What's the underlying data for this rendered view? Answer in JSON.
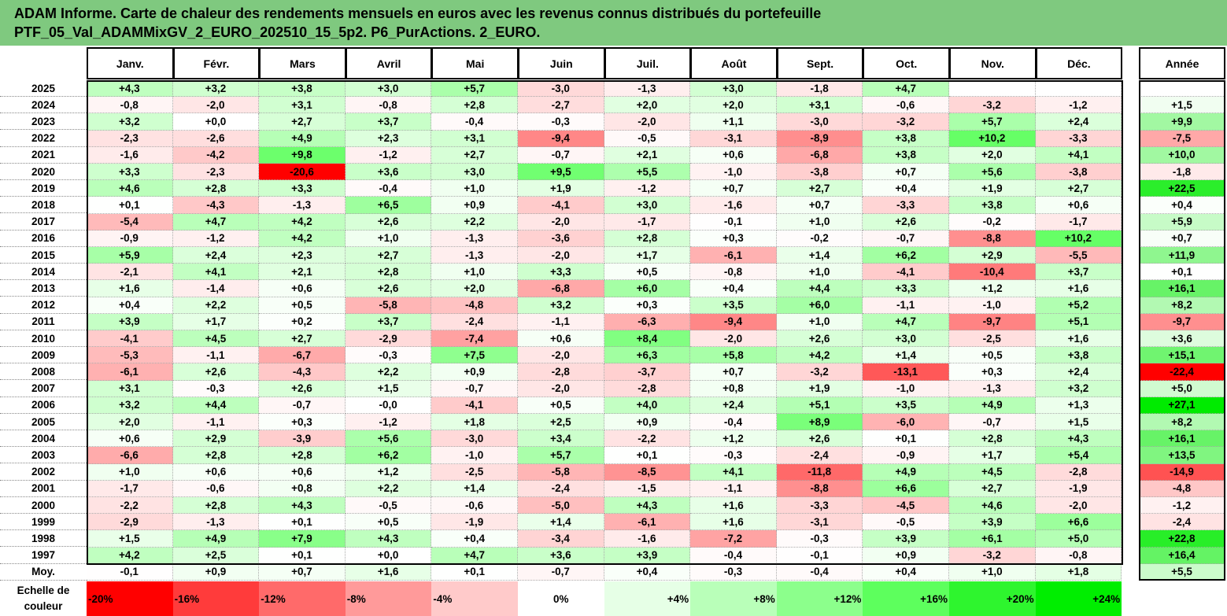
{
  "title": {
    "line1": "ADAM Informe. Carte de chaleur des rendements mensuels en euros avec les revenus connus distribués du portefeuille",
    "line2": "PTF_05_Val_ADAMMixGV_2_EURO_202510_15_5p2. P6_PurActions. 2_EURO."
  },
  "colors": {
    "title_bg": "#7fc97f",
    "max_negative": "#ff0000",
    "max_positive": "#00ee00",
    "neutral": "#ffffff"
  },
  "chart_data": {
    "type": "heatmap",
    "columns": [
      "Janv.",
      "Févr.",
      "Mars",
      "Avril",
      "Mai",
      "Juin",
      "Juil.",
      "Août",
      "Sept.",
      "Oct.",
      "Nov.",
      "Déc."
    ],
    "year_column": "Année",
    "rows": [
      {
        "label": "2025",
        "months": [
          "+4,3",
          "+3,2",
          "+3,8",
          "+3,0",
          "+5,7",
          "-3,0",
          "-1,3",
          "+3,0",
          "-1,8",
          "+4,7",
          "",
          ""
        ],
        "year": ""
      },
      {
        "label": "2024",
        "months": [
          "-0,8",
          "-2,0",
          "+3,1",
          "-0,8",
          "+2,8",
          "-2,7",
          "+2,0",
          "+2,0",
          "+3,1",
          "-0,6",
          "-3,2",
          "-1,2"
        ],
        "year": "+1,5"
      },
      {
        "label": "2023",
        "months": [
          "+3,2",
          "+0,0",
          "+2,7",
          "+3,7",
          "-0,4",
          "-0,3",
          "-2,0",
          "+1,1",
          "-3,0",
          "-3,2",
          "+5,7",
          "+2,4"
        ],
        "year": "+9,9"
      },
      {
        "label": "2022",
        "months": [
          "-2,3",
          "-2,6",
          "+4,9",
          "+2,3",
          "+3,1",
          "-9,4",
          "-0,5",
          "-3,1",
          "-8,9",
          "+3,8",
          "+10,2",
          "-3,3"
        ],
        "year": "-7,5"
      },
      {
        "label": "2021",
        "months": [
          "-1,6",
          "-4,2",
          "+9,8",
          "-1,2",
          "+2,7",
          "-0,7",
          "+2,1",
          "+0,6",
          "-6,8",
          "+3,8",
          "+2,0",
          "+4,1"
        ],
        "year": "+10,0"
      },
      {
        "label": "2020",
        "months": [
          "+3,3",
          "-2,3",
          "-20,6",
          "+3,6",
          "+3,0",
          "+9,5",
          "+5,5",
          "-1,0",
          "-3,8",
          "+0,7",
          "+5,6",
          "-3,8"
        ],
        "year": "-1,8"
      },
      {
        "label": "2019",
        "months": [
          "+4,6",
          "+2,8",
          "+3,3",
          "-0,4",
          "+1,0",
          "+1,9",
          "-1,2",
          "+0,7",
          "+2,7",
          "+0,4",
          "+1,9",
          "+2,7"
        ],
        "year": "+22,5"
      },
      {
        "label": "2018",
        "months": [
          "+0,1",
          "-4,3",
          "-1,3",
          "+6,5",
          "+0,9",
          "-4,1",
          "+3,0",
          "-1,6",
          "+0,7",
          "-3,3",
          "+3,8",
          "+0,6"
        ],
        "year": "+0,4"
      },
      {
        "label": "2017",
        "months": [
          "-5,4",
          "+4,7",
          "+4,2",
          "+2,6",
          "+2,2",
          "-2,0",
          "-1,7",
          "-0,1",
          "+1,0",
          "+2,6",
          "-0,2",
          "-1,7"
        ],
        "year": "+5,9"
      },
      {
        "label": "2016",
        "months": [
          "-0,9",
          "-1,2",
          "+4,2",
          "+1,0",
          "-1,3",
          "-3,6",
          "+2,8",
          "+0,3",
          "-0,2",
          "-0,7",
          "-8,8",
          "+10,2"
        ],
        "year": "+0,7"
      },
      {
        "label": "2015",
        "months": [
          "+5,9",
          "+2,4",
          "+2,3",
          "+2,7",
          "-1,3",
          "-2,0",
          "+1,7",
          "-6,1",
          "+1,4",
          "+6,2",
          "+2,9",
          "-5,5"
        ],
        "year": "+11,9"
      },
      {
        "label": "2014",
        "months": [
          "-2,1",
          "+4,1",
          "+2,1",
          "+2,8",
          "+1,0",
          "+3,3",
          "+0,5",
          "-0,8",
          "+1,0",
          "-4,1",
          "-10,4",
          "+3,7"
        ],
        "year": "+0,1"
      },
      {
        "label": "2013",
        "months": [
          "+1,6",
          "-1,4",
          "+0,6",
          "+2,6",
          "+2,0",
          "-6,8",
          "+6,0",
          "+0,4",
          "+4,4",
          "+3,3",
          "+1,2",
          "+1,6"
        ],
        "year": "+16,1"
      },
      {
        "label": "2012",
        "months": [
          "+0,4",
          "+2,2",
          "+0,5",
          "-5,8",
          "-4,8",
          "+3,2",
          "+0,3",
          "+3,5",
          "+6,0",
          "-1,1",
          "-1,0",
          "+5,2"
        ],
        "year": "+8,2"
      },
      {
        "label": "2011",
        "months": [
          "+3,9",
          "+1,7",
          "+0,2",
          "+3,7",
          "-2,4",
          "-1,1",
          "-6,3",
          "-9,4",
          "+1,0",
          "+4,7",
          "-9,7",
          "+5,1"
        ],
        "year": "-9,7"
      },
      {
        "label": "2010",
        "months": [
          "-4,1",
          "+4,5",
          "+2,7",
          "-2,9",
          "-7,4",
          "+0,6",
          "+8,4",
          "-2,0",
          "+2,6",
          "+3,0",
          "-2,5",
          "+1,6"
        ],
        "year": "+3,6"
      },
      {
        "label": "2009",
        "months": [
          "-5,3",
          "-1,1",
          "-6,7",
          "-0,3",
          "+7,5",
          "-2,0",
          "+6,3",
          "+5,8",
          "+4,2",
          "+1,4",
          "+0,5",
          "+3,8"
        ],
        "year": "+15,1"
      },
      {
        "label": "2008",
        "months": [
          "-6,1",
          "+2,6",
          "-4,3",
          "+2,2",
          "+0,9",
          "-2,8",
          "-3,7",
          "+0,7",
          "-3,2",
          "-13,1",
          "+0,3",
          "+2,4"
        ],
        "year": "-22,4"
      },
      {
        "label": "2007",
        "months": [
          "+3,1",
          "-0,3",
          "+2,6",
          "+1,5",
          "-0,7",
          "-2,0",
          "-2,8",
          "+0,8",
          "+1,9",
          "-1,0",
          "-1,3",
          "+3,2"
        ],
        "year": "+5,0"
      },
      {
        "label": "2006",
        "months": [
          "+3,2",
          "+4,4",
          "-0,7",
          "-0,0",
          "-4,1",
          "+0,5",
          "+4,0",
          "+2,4",
          "+5,1",
          "+3,5",
          "+4,9",
          "+1,3"
        ],
        "year": "+27,1"
      },
      {
        "label": "2005",
        "months": [
          "+2,0",
          "-1,1",
          "+0,3",
          "-1,2",
          "+1,8",
          "+2,5",
          "+0,9",
          "-0,4",
          "+8,9",
          "-6,0",
          "-0,7",
          "+1,5"
        ],
        "year": "+8,2"
      },
      {
        "label": "2004",
        "months": [
          "+0,6",
          "+2,9",
          "-3,9",
          "+5,6",
          "-3,0",
          "+3,4",
          "-2,2",
          "+1,2",
          "+2,6",
          "+0,1",
          "+2,8",
          "+4,3"
        ],
        "year": "+16,1"
      },
      {
        "label": "2003",
        "months": [
          "-6,6",
          "+2,8",
          "+2,8",
          "+6,2",
          "-1,0",
          "+5,7",
          "+0,1",
          "-0,3",
          "-2,4",
          "-0,9",
          "+1,7",
          "+5,4"
        ],
        "year": "+13,5"
      },
      {
        "label": "2002",
        "months": [
          "+1,0",
          "+0,6",
          "+0,6",
          "+1,2",
          "-2,5",
          "-5,8",
          "-8,5",
          "+4,1",
          "-11,8",
          "+4,9",
          "+4,5",
          "-2,8"
        ],
        "year": "-14,9"
      },
      {
        "label": "2001",
        "months": [
          "-1,7",
          "-0,6",
          "+0,8",
          "+2,2",
          "+1,4",
          "-2,4",
          "-1,5",
          "-1,1",
          "-8,8",
          "+6,6",
          "+2,7",
          "-1,9"
        ],
        "year": "-4,8"
      },
      {
        "label": "2000",
        "months": [
          "-2,2",
          "+2,8",
          "+4,3",
          "-0,5",
          "-0,6",
          "-5,0",
          "+4,3",
          "+1,6",
          "-3,3",
          "-4,5",
          "+4,6",
          "-2,0"
        ],
        "year": "-1,2"
      },
      {
        "label": "1999",
        "months": [
          "-2,9",
          "-1,3",
          "+0,1",
          "+0,5",
          "-1,9",
          "+1,4",
          "-6,1",
          "+1,6",
          "-3,1",
          "-0,5",
          "+3,9",
          "+6,6"
        ],
        "year": "-2,4"
      },
      {
        "label": "1998",
        "months": [
          "+1,5",
          "+4,9",
          "+7,9",
          "+4,3",
          "+0,4",
          "-3,4",
          "-1,6",
          "-7,2",
          "-0,3",
          "+3,9",
          "+6,1",
          "+5,0"
        ],
        "year": "+22,8"
      },
      {
        "label": "1997",
        "months": [
          "+4,2",
          "+2,5",
          "+0,1",
          "+0,0",
          "+4,7",
          "+3,6",
          "+3,9",
          "-0,4",
          "-0,1",
          "+0,9",
          "-3,2",
          "-0,8"
        ],
        "year": "+16,4"
      },
      {
        "label": "Moy.",
        "months": [
          "-0,1",
          "+0,9",
          "+0,7",
          "+1,6",
          "+0,1",
          "-0,7",
          "+0,4",
          "-0,3",
          "-0,4",
          "+0,4",
          "+1,0",
          "+1,8"
        ],
        "year": "+5,5"
      }
    ],
    "scale": {
      "label_line1": "Echelle de",
      "label_line2": "couleur",
      "steps": [
        "-20%",
        "-16%",
        "-12%",
        "-8%",
        "-4%",
        "0%",
        "+4%",
        "+8%",
        "+12%",
        "+16%",
        "+20%",
        "+24%"
      ]
    }
  }
}
